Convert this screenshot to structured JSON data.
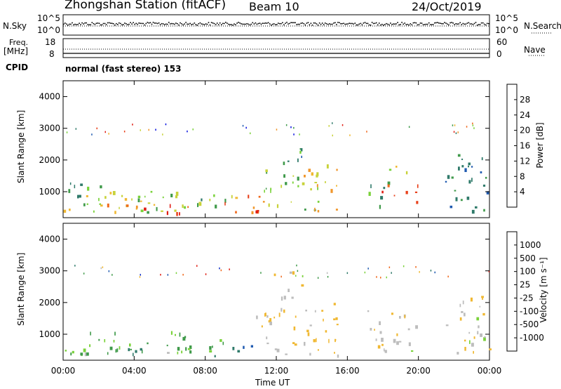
{
  "header": {
    "title": "Zhongshan Station (fitACF)",
    "beam": "Beam 10",
    "date": "24/Oct/2019"
  },
  "params": {
    "nsky_label": "N.Sky",
    "nsky_ticks": [
      "10^5",
      "10^0"
    ],
    "nsearch_label": "N.Search",
    "nsearch_ticks": [
      "10^5",
      "10^0"
    ],
    "freq_label": "Freq.",
    "freq_unit": "[MHz]",
    "freq_ticks": [
      "18",
      "8"
    ],
    "nave_label": "Nave",
    "nave_ticks": [
      "60",
      "0"
    ],
    "cpid_label": "CPID",
    "cpid_text": "normal (fast stereo) 153"
  },
  "colors": {
    "power": [
      "#0a14e0",
      "#1f5ab0",
      "#2f7a6a",
      "#3f9a4a",
      "#7ad23a",
      "#c8d23a",
      "#f0b832",
      "#f0962a",
      "#f06a1e",
      "#e8401a",
      "#e01e14"
    ],
    "velocity": [
      "#e01e14",
      "#f06a1e",
      "#f0962a",
      "#f0b832",
      "#bdbdbd",
      "#7ad23a",
      "#3f9a4a",
      "#2f7a6a",
      "#1f5ab0",
      "#1030c8"
    ]
  },
  "colorbars": {
    "power": {
      "label": "Power [dB]",
      "ticks": [
        "28",
        "24",
        "20",
        "16",
        "12",
        "8",
        "4"
      ]
    },
    "velocity": {
      "label": "Velocity [m s⁻¹]",
      "ticks": [
        "1000",
        "500",
        "100",
        "25",
        "-25",
        "-100",
        "-500",
        "-1000"
      ]
    }
  },
  "chart_data": [
    {
      "type": "heatmap",
      "variable": "Power",
      "ylabel": "Slant Range [km]",
      "y_ticks": [
        "4000",
        "3000",
        "2000",
        "1000"
      ],
      "ylim": [
        180,
        4500
      ],
      "x_ticks": [
        "00:00",
        "04:00",
        "08:00",
        "12:00",
        "16:00",
        "20:00",
        "00:00"
      ],
      "clim": [
        0,
        30
      ],
      "regions": [
        {
          "t": [
            0.0,
            6.5
          ],
          "r": [
            300,
            1100
          ],
          "v": 14
        },
        {
          "t": [
            0.3,
            2.5
          ],
          "r": [
            500,
            1300
          ],
          "v": 10
        },
        {
          "t": [
            2.0,
            5.5
          ],
          "r": [
            450,
            800
          ],
          "v": 20
        },
        {
          "t": [
            4.0,
            7.0
          ],
          "r": [
            250,
            600
          ],
          "v": 26
        },
        {
          "t": [
            6.0,
            9.5
          ],
          "r": [
            350,
            900
          ],
          "v": 12
        },
        {
          "t": [
            8.5,
            11.3
          ],
          "r": [
            300,
            900
          ],
          "v": 22
        },
        {
          "t": [
            9.5,
            11.0
          ],
          "r": [
            200,
            420
          ],
          "v": 29
        },
        {
          "t": [
            11.3,
            14.5
          ],
          "r": [
            400,
            1700
          ],
          "v": 12
        },
        {
          "t": [
            12.3,
            13.5
          ],
          "r": [
            1800,
            2900
          ],
          "v": 8
        },
        {
          "t": [
            13.5,
            15.5
          ],
          "r": [
            900,
            1900
          ],
          "v": 18
        },
        {
          "t": [
            14.0,
            15.8
          ],
          "r": [
            350,
            650
          ],
          "v": 20
        },
        {
          "t": [
            17.0,
            18.3
          ],
          "r": [
            450,
            1300
          ],
          "v": 10
        },
        {
          "t": [
            17.6,
            19.5
          ],
          "r": [
            1500,
            1800
          ],
          "v": 16
        },
        {
          "t": [
            17.8,
            20.0
          ],
          "r": [
            600,
            1200
          ],
          "v": 26
        },
        {
          "t": [
            21.5,
            24.0
          ],
          "r": [
            350,
            2200
          ],
          "v": 7
        }
      ]
    },
    {
      "type": "heatmap",
      "variable": "Velocity",
      "ylabel": "Slant Range [km]",
      "y_ticks": [
        "4000",
        "3000",
        "2000",
        "1000"
      ],
      "ylim": [
        180,
        4500
      ],
      "x_ticks": [
        "00:00",
        "04:00",
        "08:00",
        "12:00",
        "16:00",
        "20:00",
        "00:00"
      ],
      "xlabel": "Time UT",
      "clim": [
        -1000,
        1000
      ],
      "regions": [
        {
          "t": [
            0.0,
            7.0
          ],
          "r": [
            350,
            1100
          ],
          "v": 120
        },
        {
          "t": [
            1.0,
            5.0
          ],
          "r": [
            300,
            550
          ],
          "v": 450
        },
        {
          "t": [
            5.5,
            9.0
          ],
          "r": [
            400,
            950
          ],
          "v": 150
        },
        {
          "t": [
            8.5,
            10.8
          ],
          "r": [
            300,
            700
          ],
          "v": 600
        },
        {
          "t": [
            10.8,
            15.5
          ],
          "r": [
            300,
            1800
          ],
          "v": -200
        },
        {
          "t": [
            11.8,
            13.5
          ],
          "r": [
            2000,
            3000
          ],
          "v": -150
        },
        {
          "t": [
            14.5,
            15.5
          ],
          "r": [
            1200,
            2000
          ],
          "v": -400
        },
        {
          "t": [
            17.0,
            20.0
          ],
          "r": [
            400,
            1800
          ],
          "v": -180
        },
        {
          "t": [
            21.5,
            24.0
          ],
          "r": [
            350,
            2200
          ],
          "v": -120
        }
      ]
    }
  ],
  "axis": {
    "xlabel": "Time UT"
  }
}
